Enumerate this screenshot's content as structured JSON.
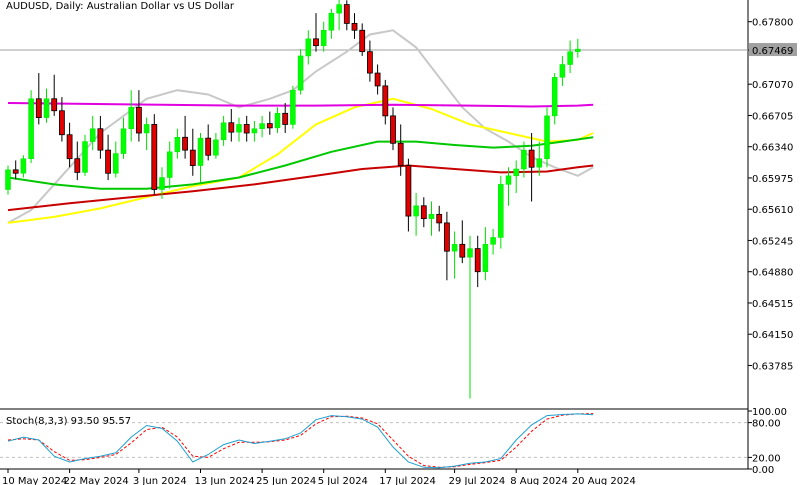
{
  "header": {
    "symbol_label": "AUDUSD, Daily:  Australian Dollar vs US Dollar"
  },
  "current_price": "0.67469",
  "chart_data": {
    "type": "candlestick",
    "symbol": "AUDUSD",
    "timeframe": "Daily",
    "y_range": [
      0.633,
      0.6803
    ],
    "y_ticks": [
      "0.67800",
      "0.67469",
      "0.67070",
      "0.66705",
      "0.66340",
      "0.65975",
      "0.65610",
      "0.65245",
      "0.64880",
      "0.64515",
      "0.64150",
      "0.63785"
    ],
    "x_ticks": [
      {
        "i": 0,
        "label": "10 May 2024"
      },
      {
        "i": 8,
        "label": "22 May 2024"
      },
      {
        "i": 17,
        "label": "3 Jun 2024"
      },
      {
        "i": 25,
        "label": "13 Jun 2024"
      },
      {
        "i": 33,
        "label": "25 Jun 2024"
      },
      {
        "i": 41,
        "label": "5 Jul 2024"
      },
      {
        "i": 49,
        "label": "17 Jul 2024"
      },
      {
        "i": 58,
        "label": "29 Jul 2024"
      },
      {
        "i": 66,
        "label": "8 Aug 2024"
      },
      {
        "i": 74,
        "label": "20 Aug 2024"
      }
    ],
    "candles": [
      [
        0.6584,
        0.6612,
        0.6578,
        0.6607
      ],
      [
        0.6607,
        0.6618,
        0.6596,
        0.6603
      ],
      [
        0.6603,
        0.6624,
        0.6598,
        0.662
      ],
      [
        0.662,
        0.67,
        0.6615,
        0.669
      ],
      [
        0.669,
        0.672,
        0.666,
        0.6668
      ],
      [
        0.6668,
        0.6702,
        0.6662,
        0.669
      ],
      [
        0.669,
        0.6718,
        0.667,
        0.6676
      ],
      [
        0.6676,
        0.6692,
        0.664,
        0.6648
      ],
      [
        0.6648,
        0.6662,
        0.661,
        0.662
      ],
      [
        0.662,
        0.664,
        0.6595,
        0.6604
      ],
      [
        0.6604,
        0.6648,
        0.66,
        0.664
      ],
      [
        0.664,
        0.667,
        0.663,
        0.6655
      ],
      [
        0.6655,
        0.667,
        0.662,
        0.663
      ],
      [
        0.663,
        0.6648,
        0.6595,
        0.6603
      ],
      [
        0.6603,
        0.664,
        0.6598,
        0.6626
      ],
      [
        0.6626,
        0.6668,
        0.662,
        0.6655
      ],
      [
        0.6655,
        0.67,
        0.664,
        0.668
      ],
      [
        0.668,
        0.67,
        0.664,
        0.665
      ],
      [
        0.665,
        0.6668,
        0.663,
        0.666
      ],
      [
        0.666,
        0.6672,
        0.6578,
        0.6584
      ],
      [
        0.6584,
        0.661,
        0.6573,
        0.6598
      ],
      [
        0.6598,
        0.664,
        0.6585,
        0.6628
      ],
      [
        0.6628,
        0.6655,
        0.662,
        0.6645
      ],
      [
        0.6645,
        0.667,
        0.662,
        0.663
      ],
      [
        0.663,
        0.6655,
        0.66,
        0.6612
      ],
      [
        0.6612,
        0.665,
        0.659,
        0.6644
      ],
      [
        0.6644,
        0.666,
        0.6618,
        0.6624
      ],
      [
        0.6624,
        0.665,
        0.662,
        0.6642
      ],
      [
        0.6642,
        0.667,
        0.6635,
        0.6662
      ],
      [
        0.6662,
        0.6678,
        0.664,
        0.6651
      ],
      [
        0.6651,
        0.6668,
        0.664,
        0.666
      ],
      [
        0.666,
        0.667,
        0.664,
        0.665
      ],
      [
        0.665,
        0.6664,
        0.664,
        0.6655
      ],
      [
        0.6655,
        0.667,
        0.6645,
        0.6661
      ],
      [
        0.6661,
        0.6675,
        0.6648,
        0.6656
      ],
      [
        0.6656,
        0.668,
        0.665,
        0.6673
      ],
      [
        0.6673,
        0.6685,
        0.665,
        0.666
      ],
      [
        0.666,
        0.6705,
        0.6655,
        0.67
      ],
      [
        0.67,
        0.6748,
        0.6695,
        0.674
      ],
      [
        0.674,
        0.677,
        0.673,
        0.676
      ],
      [
        0.676,
        0.679,
        0.6745,
        0.6752
      ],
      [
        0.6752,
        0.678,
        0.6745,
        0.677
      ],
      [
        0.677,
        0.6795,
        0.676,
        0.679
      ],
      [
        0.679,
        0.6812,
        0.677,
        0.68
      ],
      [
        0.68,
        0.6805,
        0.677,
        0.6778
      ],
      [
        0.6778,
        0.679,
        0.676,
        0.677
      ],
      [
        0.677,
        0.6778,
        0.674,
        0.6745
      ],
      [
        0.6745,
        0.6758,
        0.671,
        0.672
      ],
      [
        0.672,
        0.673,
        0.6695,
        0.6705
      ],
      [
        0.6705,
        0.6712,
        0.666,
        0.667
      ],
      [
        0.667,
        0.668,
        0.663,
        0.6638
      ],
      [
        0.6638,
        0.666,
        0.66,
        0.6612
      ],
      [
        0.6612,
        0.662,
        0.6535,
        0.6553
      ],
      [
        0.6553,
        0.658,
        0.653,
        0.6565
      ],
      [
        0.6565,
        0.6575,
        0.654,
        0.655
      ],
      [
        0.655,
        0.657,
        0.653,
        0.6555
      ],
      [
        0.6555,
        0.6565,
        0.6535,
        0.6545
      ],
      [
        0.6545,
        0.6558,
        0.6478,
        0.6512
      ],
      [
        0.6512,
        0.6535,
        0.648,
        0.652
      ],
      [
        0.652,
        0.6548,
        0.6498,
        0.6505
      ],
      [
        0.6505,
        0.653,
        0.634,
        0.6515
      ],
      [
        0.6515,
        0.653,
        0.647,
        0.6488
      ],
      [
        0.6488,
        0.654,
        0.6478,
        0.652
      ],
      [
        0.652,
        0.6538,
        0.6508,
        0.6528
      ],
      [
        0.6528,
        0.66,
        0.6515,
        0.659
      ],
      [
        0.659,
        0.661,
        0.6565,
        0.66
      ],
      [
        0.66,
        0.6618,
        0.658,
        0.6608
      ],
      [
        0.6608,
        0.664,
        0.6598,
        0.663
      ],
      [
        0.663,
        0.665,
        0.657,
        0.661
      ],
      [
        0.661,
        0.664,
        0.66,
        0.662
      ],
      [
        0.662,
        0.668,
        0.661,
        0.667
      ],
      [
        0.667,
        0.672,
        0.666,
        0.6715
      ],
      [
        0.6715,
        0.674,
        0.6705,
        0.673
      ],
      [
        0.673,
        0.6758,
        0.672,
        0.6745
      ],
      [
        0.6745,
        0.676,
        0.6738,
        0.6748
      ]
    ],
    "ma_lines": [
      {
        "color": "#c8c8c8",
        "points": [
          [
            0,
            0.6545
          ],
          [
            3,
            0.656
          ],
          [
            6,
            0.659
          ],
          [
            9,
            0.662
          ],
          [
            12,
            0.665
          ],
          [
            15,
            0.667
          ],
          [
            18,
            0.669
          ],
          [
            22,
            0.67
          ],
          [
            26,
            0.6695
          ],
          [
            30,
            0.668
          ],
          [
            34,
            0.669
          ],
          [
            37,
            0.67
          ],
          [
            40,
            0.6722
          ],
          [
            44,
            0.6745
          ],
          [
            47,
            0.6765
          ],
          [
            50,
            0.677
          ],
          [
            53,
            0.675
          ],
          [
            56,
            0.6715
          ],
          [
            59,
            0.668
          ],
          [
            62,
            0.6655
          ],
          [
            65,
            0.664
          ],
          [
            68,
            0.6622
          ],
          [
            71,
            0.661
          ],
          [
            74,
            0.66
          ],
          [
            76,
            0.661
          ]
        ]
      },
      {
        "color": "#ffff00",
        "points": [
          [
            0,
            0.6545
          ],
          [
            6,
            0.6552
          ],
          [
            12,
            0.6562
          ],
          [
            18,
            0.6575
          ],
          [
            24,
            0.6588
          ],
          [
            30,
            0.6598
          ],
          [
            35,
            0.6625
          ],
          [
            40,
            0.666
          ],
          [
            45,
            0.668
          ],
          [
            50,
            0.669
          ],
          [
            55,
            0.6678
          ],
          [
            60,
            0.666
          ],
          [
            65,
            0.665
          ],
          [
            70,
            0.664
          ],
          [
            74,
            0.6642
          ],
          [
            76,
            0.665
          ]
        ]
      },
      {
        "color": "#00c800",
        "points": [
          [
            0,
            0.6598
          ],
          [
            6,
            0.659
          ],
          [
            12,
            0.6585
          ],
          [
            18,
            0.6585
          ],
          [
            24,
            0.659
          ],
          [
            30,
            0.6598
          ],
          [
            36,
            0.6612
          ],
          [
            42,
            0.6628
          ],
          [
            48,
            0.664
          ],
          [
            53,
            0.664
          ],
          [
            58,
            0.6636
          ],
          [
            63,
            0.6633
          ],
          [
            68,
            0.6635
          ],
          [
            72,
            0.664
          ],
          [
            76,
            0.6645
          ]
        ]
      },
      {
        "color": "#c80000",
        "points": [
          [
            0,
            0.656
          ],
          [
            8,
            0.6568
          ],
          [
            16,
            0.6575
          ],
          [
            24,
            0.6582
          ],
          [
            32,
            0.659
          ],
          [
            40,
            0.66
          ],
          [
            46,
            0.6608
          ],
          [
            52,
            0.6612
          ],
          [
            58,
            0.6608
          ],
          [
            64,
            0.6604
          ],
          [
            70,
            0.6605
          ],
          [
            74,
            0.661
          ],
          [
            76,
            0.6612
          ]
        ]
      },
      {
        "color": "#e000e0",
        "points": [
          [
            0,
            0.6685
          ],
          [
            10,
            0.6684
          ],
          [
            20,
            0.6683
          ],
          [
            30,
            0.6682
          ],
          [
            40,
            0.6682
          ],
          [
            50,
            0.6683
          ],
          [
            60,
            0.6682
          ],
          [
            68,
            0.6681
          ],
          [
            74,
            0.6682
          ],
          [
            76,
            0.6683
          ]
        ]
      }
    ],
    "stoch": {
      "label": "Stoch(8,3,3) 93.50 95.57",
      "y_ticks": [
        "100.00",
        "80.00",
        "20.00",
        "0.00"
      ],
      "levels": [
        80,
        20
      ],
      "main": [
        [
          0,
          48
        ],
        [
          2,
          55
        ],
        [
          4,
          50
        ],
        [
          6,
          22
        ],
        [
          8,
          12
        ],
        [
          10,
          18
        ],
        [
          12,
          22
        ],
        [
          14,
          28
        ],
        [
          16,
          55
        ],
        [
          18,
          75
        ],
        [
          20,
          70
        ],
        [
          22,
          48
        ],
        [
          24,
          12
        ],
        [
          26,
          25
        ],
        [
          28,
          42
        ],
        [
          30,
          50
        ],
        [
          32,
          44
        ],
        [
          34,
          48
        ],
        [
          36,
          52
        ],
        [
          38,
          62
        ],
        [
          40,
          85
        ],
        [
          42,
          92
        ],
        [
          44,
          90
        ],
        [
          46,
          86
        ],
        [
          48,
          72
        ],
        [
          50,
          38
        ],
        [
          52,
          12
        ],
        [
          54,
          3
        ],
        [
          56,
          2
        ],
        [
          58,
          5
        ],
        [
          60,
          10
        ],
        [
          62,
          12
        ],
        [
          64,
          18
        ],
        [
          66,
          50
        ],
        [
          68,
          76
        ],
        [
          70,
          92
        ],
        [
          72,
          94
        ],
        [
          74,
          95
        ],
        [
          76,
          93.5
        ]
      ],
      "signal": [
        [
          0,
          50
        ],
        [
          2,
          52
        ],
        [
          4,
          50
        ],
        [
          6,
          30
        ],
        [
          8,
          15
        ],
        [
          10,
          16
        ],
        [
          12,
          20
        ],
        [
          14,
          25
        ],
        [
          16,
          45
        ],
        [
          18,
          68
        ],
        [
          20,
          72
        ],
        [
          22,
          55
        ],
        [
          24,
          22
        ],
        [
          26,
          20
        ],
        [
          28,
          35
        ],
        [
          30,
          46
        ],
        [
          32,
          46
        ],
        [
          34,
          47
        ],
        [
          36,
          50
        ],
        [
          38,
          58
        ],
        [
          40,
          78
        ],
        [
          42,
          90
        ],
        [
          44,
          91
        ],
        [
          46,
          88
        ],
        [
          48,
          78
        ],
        [
          50,
          50
        ],
        [
          52,
          22
        ],
        [
          54,
          6
        ],
        [
          56,
          3
        ],
        [
          58,
          4
        ],
        [
          60,
          8
        ],
        [
          62,
          11
        ],
        [
          64,
          15
        ],
        [
          66,
          38
        ],
        [
          68,
          65
        ],
        [
          70,
          86
        ],
        [
          72,
          93
        ],
        [
          74,
          95
        ],
        [
          76,
          95.57
        ]
      ]
    }
  }
}
